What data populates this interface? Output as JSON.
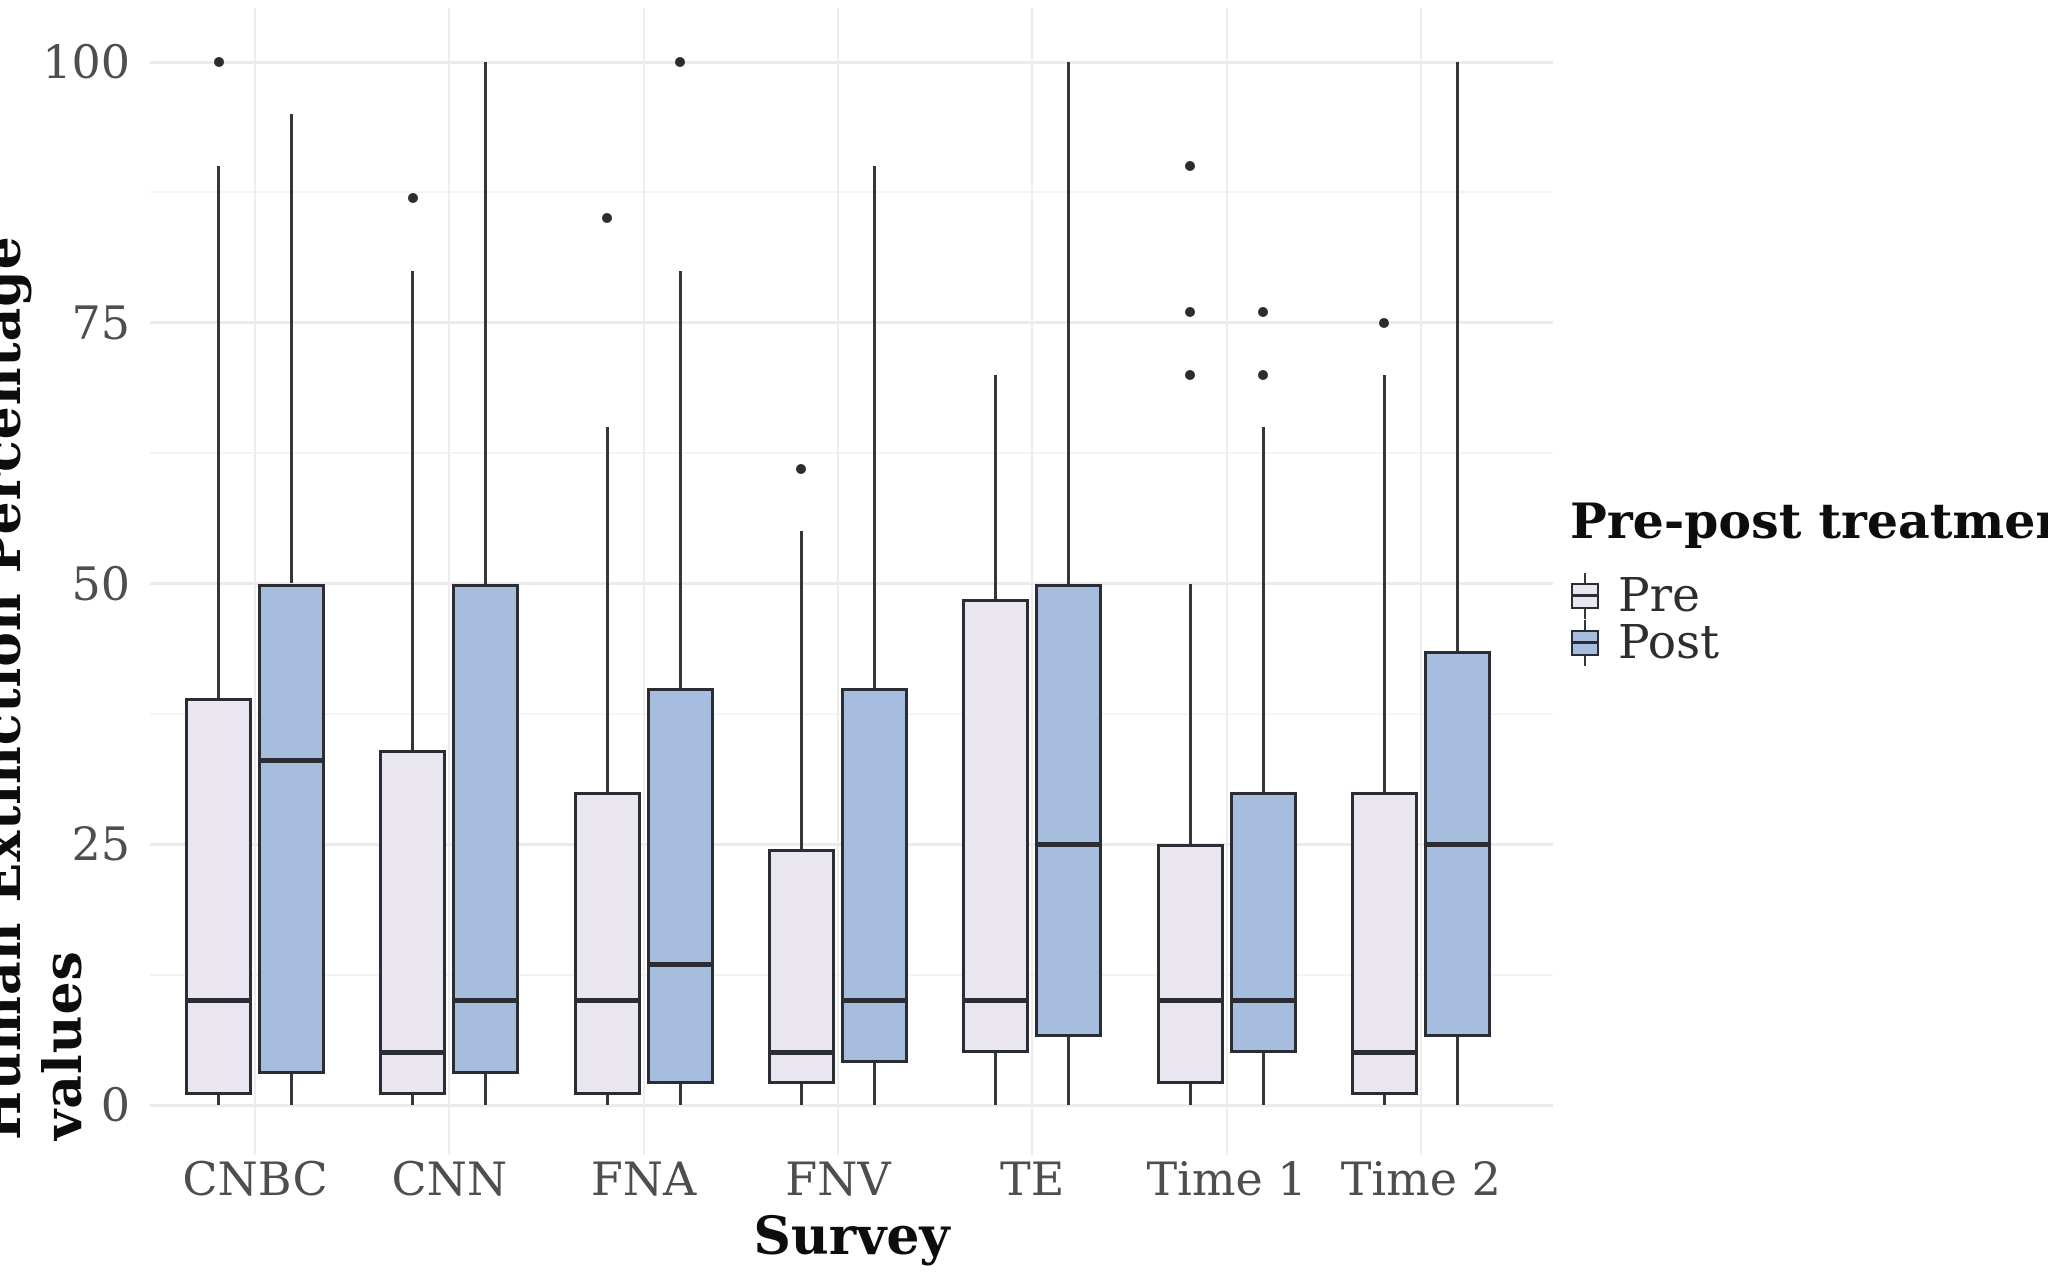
{
  "chart_data": {
    "type": "boxplot",
    "title": "",
    "xlabel": "Survey",
    "ylabel": "Human Extinction Percentage values",
    "categories": [
      "CNBC",
      "CNN",
      "FNA",
      "FNV",
      "TE",
      "Time 1",
      "Time 2"
    ],
    "y_ticks": [
      0,
      25,
      50,
      75,
      100
    ],
    "ylim": [
      0,
      100
    ],
    "layout": {
      "grid": true,
      "minor_ticks": [
        12.5,
        37.5,
        62.5,
        87.5
      ],
      "legend_position": "right"
    },
    "colors": {
      "pre_fill": "#e9e6f0",
      "post_fill": "#a7bddd",
      "stroke": "#2a2d34",
      "outlier": "#2d2d2d",
      "grid_major": "#ebebeb",
      "grid_minor": "#f4f4f4",
      "tick_text": "#4e4e4e"
    },
    "legend": {
      "title": "Pre-post treatment",
      "entries": [
        {
          "label": "Pre",
          "color": "#e9e6f0"
        },
        {
          "label": "Post",
          "color": "#a7bddd"
        }
      ]
    },
    "series": [
      {
        "name": "Pre",
        "color": "#e9e6f0",
        "boxes": [
          {
            "category": "CNBC",
            "low": 0,
            "q1": 1,
            "median": 10,
            "q3": 39,
            "high": 90,
            "outliers": [
              100
            ]
          },
          {
            "category": "CNN",
            "low": 0,
            "q1": 1,
            "median": 5,
            "q3": 34,
            "high": 80,
            "outliers": [
              87
            ]
          },
          {
            "category": "FNA",
            "low": 0,
            "q1": 1,
            "median": 10,
            "q3": 30,
            "high": 65,
            "outliers": [
              85
            ]
          },
          {
            "category": "FNV",
            "low": 0,
            "q1": 2,
            "median": 5,
            "q3": 24.5,
            "high": 55,
            "outliers": [
              61
            ]
          },
          {
            "category": "TE",
            "low": 0,
            "q1": 5,
            "median": 10,
            "q3": 48.5,
            "high": 70,
            "outliers": []
          },
          {
            "category": "Time 1",
            "low": 0,
            "q1": 2,
            "median": 10,
            "q3": 25,
            "high": 50,
            "outliers": [
              70,
              76,
              90
            ]
          },
          {
            "category": "Time 2",
            "low": 0,
            "q1": 1,
            "median": 5,
            "q3": 30,
            "high": 70,
            "outliers": [
              75
            ]
          }
        ]
      },
      {
        "name": "Post",
        "color": "#a7bddd",
        "boxes": [
          {
            "category": "CNBC",
            "low": 0,
            "q1": 3,
            "median": 33,
            "q3": 50,
            "high": 95,
            "outliers": []
          },
          {
            "category": "CNN",
            "low": 0,
            "q1": 3,
            "median": 10,
            "q3": 50,
            "high": 100,
            "outliers": []
          },
          {
            "category": "FNA",
            "low": 0,
            "q1": 2,
            "median": 13.5,
            "q3": 40,
            "high": 80,
            "outliers": [
              100
            ]
          },
          {
            "category": "FNV",
            "low": 0,
            "q1": 4,
            "median": 10,
            "q3": 40,
            "high": 90,
            "outliers": []
          },
          {
            "category": "TE",
            "low": 0,
            "q1": 6.5,
            "median": 25,
            "q3": 50,
            "high": 100,
            "outliers": []
          },
          {
            "category": "Time 1",
            "low": 0,
            "q1": 5,
            "median": 10,
            "q3": 30,
            "high": 65,
            "outliers": [
              70,
              76
            ]
          },
          {
            "category": "Time 2",
            "low": 0,
            "q1": 6.5,
            "median": 25,
            "q3": 43.5,
            "high": 100,
            "outliers": []
          }
        ]
      }
    ]
  }
}
